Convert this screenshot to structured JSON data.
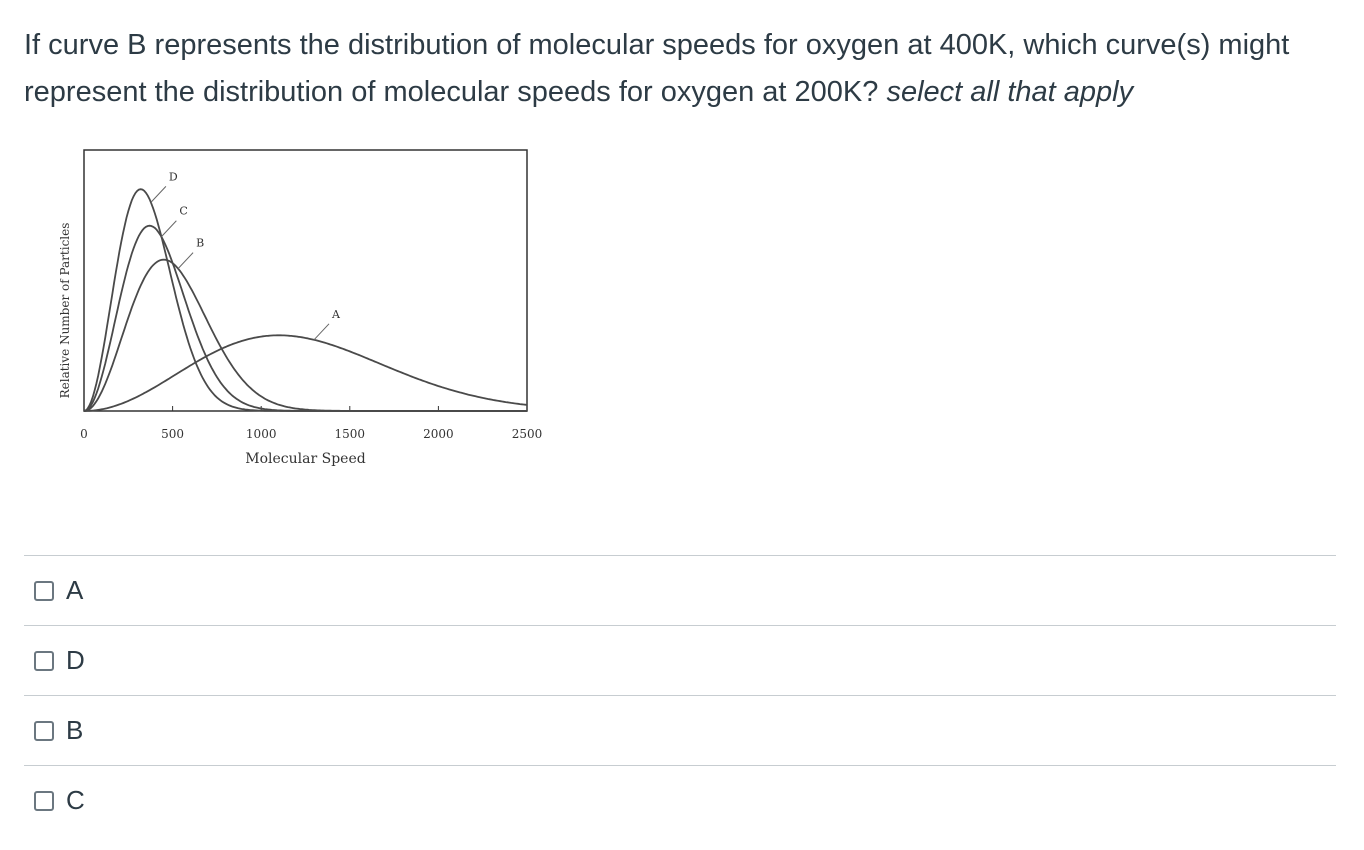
{
  "question": {
    "text": "If curve B represents the distribution of molecular speeds for oxygen at 400K, which curve(s) might  represent the distribution of molecular speeds for oxygen at 200K? ",
    "hint": "select all that apply"
  },
  "chart_data": {
    "type": "line",
    "xlabel": "Molecular Speed",
    "ylabel": "Relative Number of Particles",
    "xlim": [
      0,
      2500
    ],
    "x_ticks": [
      "0",
      "500",
      "1000",
      "1500",
      "2000",
      "2500"
    ],
    "grid": false,
    "series": [
      {
        "name": "D",
        "peak_speed": 320,
        "peak_height": 0.85
      },
      {
        "name": "C",
        "peak_speed": 370,
        "peak_height": 0.71
      },
      {
        "name": "B",
        "peak_speed": 450,
        "peak_height": 0.58
      },
      {
        "name": "A",
        "peak_speed": 1100,
        "peak_height": 0.29
      }
    ]
  },
  "answers": [
    {
      "label": "A",
      "checked": false
    },
    {
      "label": "D",
      "checked": false
    },
    {
      "label": "B",
      "checked": false
    },
    {
      "label": "C",
      "checked": false
    }
  ],
  "colors": {
    "text": "#2d3b45",
    "divider": "#c7cdd1",
    "curve": "#4a4a4a"
  }
}
